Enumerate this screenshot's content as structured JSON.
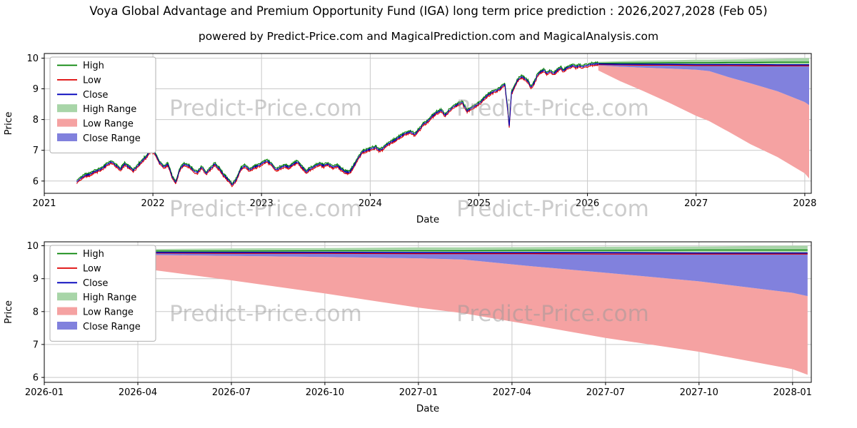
{
  "page": {
    "title": "Voya Global Advantage and Premium Opportunity Fund (IGA) long term price prediction : 2026,2027,2028 (Feb 05)",
    "subtitle": "powered by Predict-Price.com and MagicalPrediction.com and MagicalAnalysis.com"
  },
  "watermark": {
    "text": "Predict-Price.com"
  },
  "colors": {
    "high_line": "#008000",
    "low_line": "#dd0000",
    "close_line": "#0000bb",
    "high_range_fill": "#a8d5a8",
    "low_range_fill": "#f5a2a2",
    "close_range_fill": "#8181dd",
    "grid": "#c9c9c9",
    "axis": "#000000",
    "watermark": "#9a9a9a",
    "legend_border": "#b0b0b0"
  },
  "chart_data": [
    {
      "name": "price-history-and-forecast-chart",
      "type": "line",
      "title": "",
      "xlabel": "Date",
      "ylabel": "Price",
      "xlim": [
        2021.0,
        2028.06
      ],
      "ylim": [
        5.6,
        10.15
      ],
      "yticks": [
        6,
        7,
        8,
        9,
        10
      ],
      "xticks": [
        {
          "v": 2021,
          "label": "2021"
        },
        {
          "v": 2022,
          "label": "2022"
        },
        {
          "v": 2023,
          "label": "2023"
        },
        {
          "v": 2024,
          "label": "2024"
        },
        {
          "v": 2025,
          "label": "2025"
        },
        {
          "v": 2026,
          "label": "2026"
        },
        {
          "v": 2027,
          "label": "2027"
        },
        {
          "v": 2028,
          "label": "2028"
        }
      ],
      "legend": [
        "High",
        "Low",
        "Close",
        "High Range",
        "Low Range",
        "Close Range"
      ],
      "close_anchors": [
        [
          2021.3,
          5.98
        ],
        [
          2021.34,
          6.1
        ],
        [
          2021.38,
          6.18
        ],
        [
          2021.42,
          6.22
        ],
        [
          2021.46,
          6.3
        ],
        [
          2021.5,
          6.35
        ],
        [
          2021.54,
          6.42
        ],
        [
          2021.58,
          6.55
        ],
        [
          2021.62,
          6.62
        ],
        [
          2021.66,
          6.5
        ],
        [
          2021.7,
          6.38
        ],
        [
          2021.74,
          6.55
        ],
        [
          2021.78,
          6.45
        ],
        [
          2021.82,
          6.35
        ],
        [
          2021.86,
          6.5
        ],
        [
          2021.9,
          6.65
        ],
        [
          2021.94,
          6.8
        ],
        [
          2021.98,
          7.0
        ],
        [
          2022.02,
          6.9
        ],
        [
          2022.06,
          6.6
        ],
        [
          2022.1,
          6.45
        ],
        [
          2022.14,
          6.55
        ],
        [
          2022.18,
          6.1
        ],
        [
          2022.21,
          5.95
        ],
        [
          2022.25,
          6.4
        ],
        [
          2022.29,
          6.55
        ],
        [
          2022.33,
          6.5
        ],
        [
          2022.37,
          6.35
        ],
        [
          2022.41,
          6.28
        ],
        [
          2022.45,
          6.45
        ],
        [
          2022.49,
          6.25
        ],
        [
          2022.53,
          6.4
        ],
        [
          2022.57,
          6.55
        ],
        [
          2022.61,
          6.4
        ],
        [
          2022.65,
          6.2
        ],
        [
          2022.69,
          6.05
        ],
        [
          2022.73,
          5.88
        ],
        [
          2022.77,
          6.05
        ],
        [
          2022.81,
          6.4
        ],
        [
          2022.85,
          6.5
        ],
        [
          2022.89,
          6.35
        ],
        [
          2022.93,
          6.45
        ],
        [
          2022.97,
          6.5
        ],
        [
          2023.01,
          6.58
        ],
        [
          2023.05,
          6.65
        ],
        [
          2023.09,
          6.55
        ],
        [
          2023.13,
          6.38
        ],
        [
          2023.17,
          6.42
        ],
        [
          2023.21,
          6.5
        ],
        [
          2023.25,
          6.45
        ],
        [
          2023.29,
          6.55
        ],
        [
          2023.33,
          6.62
        ],
        [
          2023.37,
          6.45
        ],
        [
          2023.41,
          6.3
        ],
        [
          2023.45,
          6.4
        ],
        [
          2023.49,
          6.48
        ],
        [
          2023.53,
          6.55
        ],
        [
          2023.57,
          6.5
        ],
        [
          2023.61,
          6.55
        ],
        [
          2023.65,
          6.45
        ],
        [
          2023.69,
          6.5
        ],
        [
          2023.73,
          6.4
        ],
        [
          2023.77,
          6.3
        ],
        [
          2023.81,
          6.28
        ],
        [
          2023.85,
          6.5
        ],
        [
          2023.89,
          6.75
        ],
        [
          2023.93,
          6.95
        ],
        [
          2023.97,
          7.0
        ],
        [
          2024.01,
          7.05
        ],
        [
          2024.05,
          7.1
        ],
        [
          2024.09,
          6.98
        ],
        [
          2024.13,
          7.1
        ],
        [
          2024.17,
          7.22
        ],
        [
          2024.21,
          7.3
        ],
        [
          2024.25,
          7.38
        ],
        [
          2024.29,
          7.48
        ],
        [
          2024.33,
          7.55
        ],
        [
          2024.37,
          7.6
        ],
        [
          2024.41,
          7.52
        ],
        [
          2024.45,
          7.68
        ],
        [
          2024.49,
          7.85
        ],
        [
          2024.53,
          7.95
        ],
        [
          2024.57,
          8.1
        ],
        [
          2024.61,
          8.22
        ],
        [
          2024.65,
          8.3
        ],
        [
          2024.69,
          8.15
        ],
        [
          2024.73,
          8.3
        ],
        [
          2024.77,
          8.42
        ],
        [
          2024.81,
          8.5
        ],
        [
          2024.85,
          8.55
        ],
        [
          2024.89,
          8.28
        ],
        [
          2024.93,
          8.38
        ],
        [
          2024.97,
          8.45
        ],
        [
          2025.01,
          8.55
        ],
        [
          2025.05,
          8.7
        ],
        [
          2025.09,
          8.82
        ],
        [
          2025.13,
          8.9
        ],
        [
          2025.17,
          8.95
        ],
        [
          2025.21,
          9.05
        ],
        [
          2025.24,
          9.15
        ],
        [
          2025.265,
          8.3
        ],
        [
          2025.28,
          7.78
        ],
        [
          2025.3,
          8.85
        ],
        [
          2025.33,
          9.1
        ],
        [
          2025.36,
          9.3
        ],
        [
          2025.39,
          9.4
        ],
        [
          2025.42,
          9.35
        ],
        [
          2025.45,
          9.25
        ],
        [
          2025.48,
          9.05
        ],
        [
          2025.51,
          9.2
        ],
        [
          2025.54,
          9.45
        ],
        [
          2025.57,
          9.55
        ],
        [
          2025.6,
          9.6
        ],
        [
          2025.63,
          9.5
        ],
        [
          2025.66,
          9.58
        ],
        [
          2025.69,
          9.48
        ],
        [
          2025.72,
          9.6
        ],
        [
          2025.75,
          9.68
        ],
        [
          2025.78,
          9.6
        ],
        [
          2025.81,
          9.68
        ],
        [
          2025.84,
          9.72
        ],
        [
          2025.87,
          9.76
        ],
        [
          2025.9,
          9.7
        ],
        [
          2025.93,
          9.76
        ],
        [
          2025.96,
          9.72
        ],
        [
          2025.99,
          9.76
        ],
        [
          2026.02,
          9.78
        ],
        [
          2026.05,
          9.8
        ],
        [
          2026.08,
          9.81
        ],
        [
          2026.1,
          9.82
        ]
      ],
      "forecast": {
        "x": [
          2026.1,
          2026.3,
          2026.5,
          2026.75,
          2027.0,
          2027.12,
          2027.3,
          2027.5,
          2027.75,
          2028.0,
          2028.04
        ],
        "high": [
          9.83,
          9.84,
          9.84,
          9.85,
          9.85,
          9.85,
          9.86,
          9.86,
          9.87,
          9.87,
          9.87
        ],
        "low": [
          9.79,
          9.78,
          9.77,
          9.77,
          9.76,
          9.76,
          9.76,
          9.75,
          9.75,
          9.75,
          9.75
        ],
        "close": [
          9.81,
          9.8,
          9.8,
          9.8,
          9.79,
          9.79,
          9.79,
          9.79,
          9.78,
          9.78,
          9.78
        ],
        "high_range_upper": [
          9.88,
          9.9,
          9.92,
          9.93,
          9.95,
          9.95,
          9.96,
          9.97,
          9.98,
          10.0,
          10.0
        ],
        "high_range_lower": [
          9.8,
          9.8,
          9.8,
          9.8,
          9.8,
          9.8,
          9.8,
          9.8,
          9.8,
          9.8,
          9.8
        ],
        "close_range_upper": [
          9.81,
          9.8,
          9.8,
          9.8,
          9.79,
          9.79,
          9.79,
          9.79,
          9.78,
          9.78,
          9.78
        ],
        "close_range_lower": [
          9.76,
          9.72,
          9.69,
          9.66,
          9.62,
          9.58,
          9.38,
          9.18,
          8.92,
          8.57,
          8.47
        ],
        "low_range_upper": [
          9.76,
          9.72,
          9.69,
          9.66,
          9.62,
          9.58,
          9.38,
          9.18,
          8.92,
          8.57,
          8.47
        ],
        "low_range_lower": [
          9.6,
          9.25,
          8.95,
          8.55,
          8.12,
          7.95,
          7.6,
          7.2,
          6.78,
          6.25,
          6.08
        ]
      }
    },
    {
      "name": "forecast-detail-chart",
      "type": "area",
      "title": "",
      "xlabel": "Date",
      "ylabel": "Price",
      "xlim": [
        2026.0,
        2028.05
      ],
      "ylim": [
        5.85,
        10.12
      ],
      "yticks": [
        6,
        7,
        8,
        9,
        10
      ],
      "xticks": [
        {
          "v": 2026.0,
          "label": "2026-01"
        },
        {
          "v": 2026.25,
          "label": "2026-04"
        },
        {
          "v": 2026.5,
          "label": "2026-07"
        },
        {
          "v": 2026.75,
          "label": "2026-10"
        },
        {
          "v": 2027.0,
          "label": "2027-01"
        },
        {
          "v": 2027.25,
          "label": "2027-04"
        },
        {
          "v": 2027.5,
          "label": "2027-07"
        },
        {
          "v": 2027.75,
          "label": "2027-10"
        },
        {
          "v": 2028.0,
          "label": "2028-01"
        }
      ],
      "legend": [
        "High",
        "Low",
        "Close",
        "High Range",
        "Low Range",
        "Close Range"
      ],
      "forecast": {
        "x": [
          2026.1,
          2026.3,
          2026.5,
          2026.75,
          2027.0,
          2027.12,
          2027.3,
          2027.5,
          2027.75,
          2028.0,
          2028.04
        ],
        "high": [
          9.83,
          9.84,
          9.84,
          9.85,
          9.85,
          9.85,
          9.86,
          9.86,
          9.87,
          9.87,
          9.87
        ],
        "low": [
          9.79,
          9.78,
          9.77,
          9.77,
          9.76,
          9.76,
          9.76,
          9.75,
          9.75,
          9.75,
          9.75
        ],
        "close": [
          9.81,
          9.8,
          9.8,
          9.8,
          9.79,
          9.79,
          9.79,
          9.79,
          9.78,
          9.78,
          9.78
        ],
        "high_range_upper": [
          9.88,
          9.9,
          9.92,
          9.93,
          9.95,
          9.95,
          9.96,
          9.97,
          9.98,
          10.0,
          10.0
        ],
        "high_range_lower": [
          9.8,
          9.8,
          9.8,
          9.8,
          9.8,
          9.8,
          9.8,
          9.8,
          9.8,
          9.8,
          9.8
        ],
        "close_range_upper": [
          9.81,
          9.8,
          9.8,
          9.8,
          9.79,
          9.79,
          9.79,
          9.79,
          9.78,
          9.78,
          9.78
        ],
        "close_range_lower": [
          9.76,
          9.72,
          9.69,
          9.66,
          9.62,
          9.58,
          9.38,
          9.18,
          8.92,
          8.57,
          8.47
        ],
        "low_range_upper": [
          9.76,
          9.72,
          9.69,
          9.66,
          9.62,
          9.58,
          9.38,
          9.18,
          8.92,
          8.57,
          8.47
        ],
        "low_range_lower": [
          9.6,
          9.25,
          8.95,
          8.55,
          8.12,
          7.95,
          7.6,
          7.2,
          6.78,
          6.25,
          6.08
        ]
      }
    }
  ]
}
